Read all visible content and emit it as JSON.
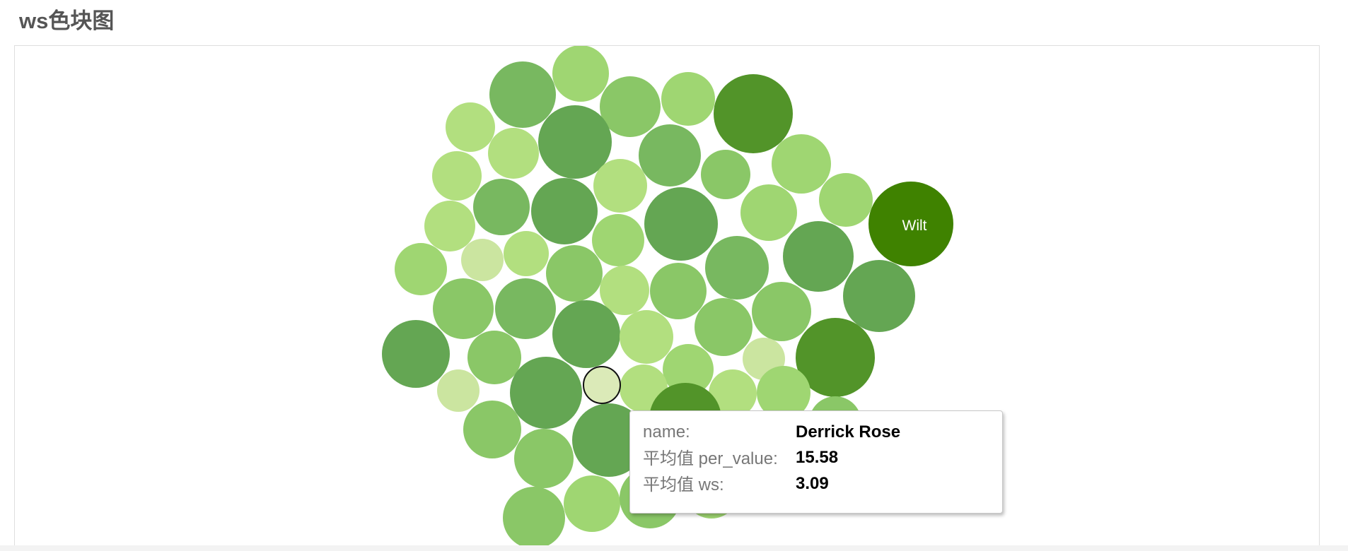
{
  "title": "ws色块图",
  "colors": {
    "darkest": "#3f8200",
    "dark": "#529429",
    "mid_dark": "#64a653",
    "mid": "#78b860",
    "mid_light": "#8ac767",
    "light": "#9fd672",
    "lighter": "#b2df7f",
    "lightest": "#cbe5a0",
    "highlight": "#dbeab8"
  },
  "chart_data": {
    "type": "bubble",
    "title": "ws色块图",
    "encoding": "circle size and green depth reflect ws; hovered circle shows details in tooltip",
    "labeled_bubbles": [
      {
        "label": "Wilt"
      }
    ],
    "hovered": {
      "name": "Derrick Rose",
      "per_value": 15.58,
      "ws": 3.09
    }
  },
  "tooltip": {
    "rows": [
      {
        "key": "name:",
        "value": "Derrick Rose"
      },
      {
        "key": "平均值 per_value:",
        "value": "15.58"
      },
      {
        "key": "平均值 ws:",
        "value": "3.09"
      }
    ]
  }
}
